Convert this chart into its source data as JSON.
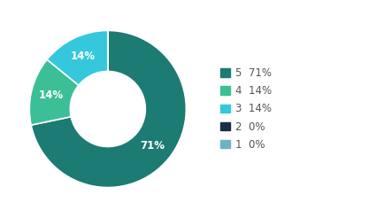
{
  "labels": [
    "5",
    "4",
    "3",
    "2",
    "1"
  ],
  "values": [
    71,
    14,
    14,
    0.0001,
    0.0001
  ],
  "colors": [
    "#1c7b72",
    "#3cbf96",
    "#35c8dd",
    "#1a2e4a",
    "#6ab4c8"
  ],
  "legend_labels": [
    "5  71%",
    "4  14%",
    "3  14%",
    "2  0%",
    "1  0%"
  ],
  "wedge_label_pcts": [
    "71%",
    "14%",
    "14%",
    "",
    ""
  ],
  "background_color": "#ffffff",
  "label_fontsize": 8.5,
  "legend_fontsize": 8.5,
  "legend_color": "#555555"
}
